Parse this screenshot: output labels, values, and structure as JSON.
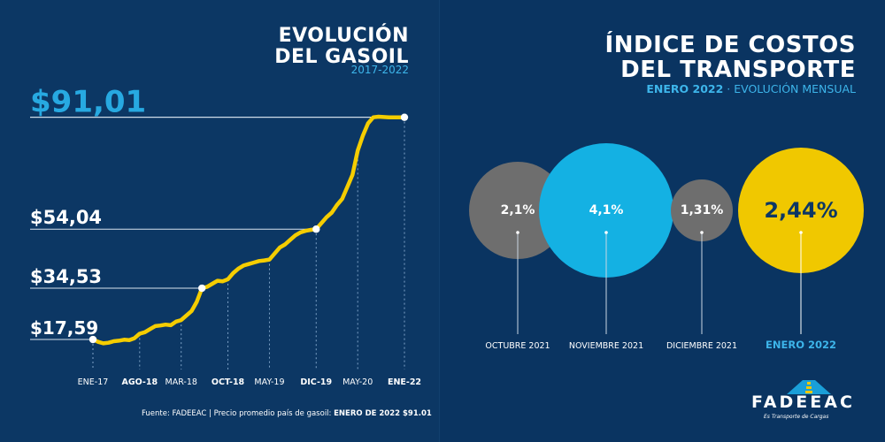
{
  "colors": {
    "background": "#0b3563",
    "line": "#f5cd00",
    "price_big": "#27a9e1",
    "circle_gray": "#6e6e6e",
    "circle_blue": "#14b1e3",
    "circle_yellow": "#f0c800",
    "highlight_blue": "#3db5ea"
  },
  "left": {
    "title_line1": "EVOLUCIÓN",
    "title_line2": "DEL GASOIL",
    "subtitle": "2017-2022",
    "source_prefix": "Fuente: FADEEAC | Precio promedio país de gasoil:",
    "source_bold": "ENERO DE 2022 $91.01"
  },
  "right": {
    "title_line1": "ÍNDICE DE COSTOS",
    "title_line2": "DEL TRANSPORTE",
    "subtitle_bold": "ENERO 2022",
    "subtitle_rest": " · EVOLUCIÓN MENSUAL",
    "logo_text": "FADEEAC",
    "logo_tagline": "Es Transporte de Cargas"
  },
  "chart_data": [
    {
      "type": "line",
      "title": "EVOLUCIÓN DEL GASOIL",
      "subtitle": "2017-2022",
      "x_tick_labels": [
        "ENE-17",
        "AGO-18",
        "MAR-18",
        "OCT-18",
        "MAY-19",
        "DIC-19",
        "MAY-20",
        "ENE-22"
      ],
      "x_tick_bold": [
        false,
        true,
        false,
        true,
        false,
        true,
        false,
        true
      ],
      "highlighted_values": [
        {
          "label": "$17,59",
          "value": 17.59
        },
        {
          "label": "$34,53",
          "value": 34.53
        },
        {
          "label": "$54,04",
          "value": 54.04
        },
        {
          "label": "$91,01",
          "value": 91.01
        }
      ],
      "ylim": [
        10,
        95
      ],
      "x_count": 61,
      "series": [
        {
          "values": [
            17.59,
            16.8,
            16.3,
            16.5,
            17.0,
            17.2,
            17.5,
            17.4,
            18.0,
            19.5,
            20.0,
            21.0,
            22.0,
            22.2,
            22.5,
            22.3,
            23.5,
            24.0,
            25.5,
            27.0,
            30.0,
            34.53,
            35.0,
            36.0,
            37.0,
            36.8,
            37.5,
            39.5,
            41.0,
            42.0,
            42.5,
            43.0,
            43.5,
            43.7,
            44.0,
            46.0,
            48.0,
            49.0,
            50.5,
            52.0,
            53.0,
            53.5,
            53.8,
            54.04,
            56.0,
            58.0,
            59.5,
            62.0,
            64.0,
            68.0,
            72.0,
            80.0,
            85.0,
            89.0,
            91.0,
            91.2,
            91.1,
            91.0,
            91.0,
            91.0,
            91.01
          ]
        }
      ]
    },
    {
      "type": "bubble",
      "title": "ÍNDICE DE COSTOS DEL TRANSPORTE",
      "categories": [
        "OCTUBRE 2021",
        "NOVIEMBRE 2021",
        "DICIEMBRE 2021",
        "ENERO 2022"
      ],
      "values": [
        2.1,
        4.1,
        1.31,
        2.44
      ],
      "value_labels": [
        "2,1%",
        "4,1%",
        "1,31%",
        "2,44%"
      ],
      "highlight": "ENERO 2022"
    }
  ]
}
